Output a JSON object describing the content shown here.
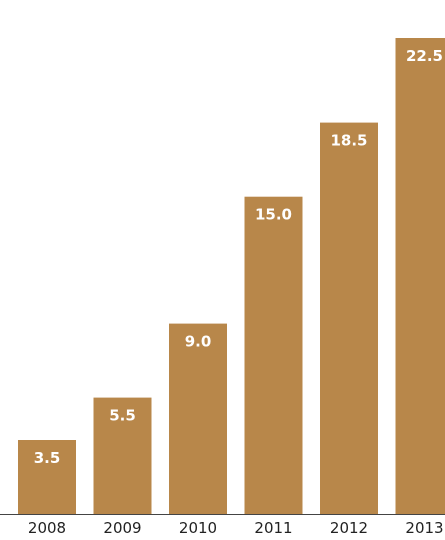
{
  "chart_data": {
    "type": "bar",
    "categories": [
      "2008",
      "2009",
      "2010",
      "2011",
      "2012",
      "2013"
    ],
    "values": [
      3.5,
      5.5,
      9.0,
      15.0,
      18.5,
      22.5
    ],
    "value_labels": [
      "3.5",
      "5.5",
      "9.0",
      "15.0",
      "18.5",
      "22.5"
    ],
    "title": "",
    "xlabel": "",
    "ylabel": "",
    "ylim": [
      0,
      22.5
    ],
    "grid": false,
    "legend": "none",
    "colors": {
      "bar": "#b8874a",
      "baseline": "#444444",
      "value_text": "#ffffff",
      "tick_text": "#222222"
    }
  }
}
